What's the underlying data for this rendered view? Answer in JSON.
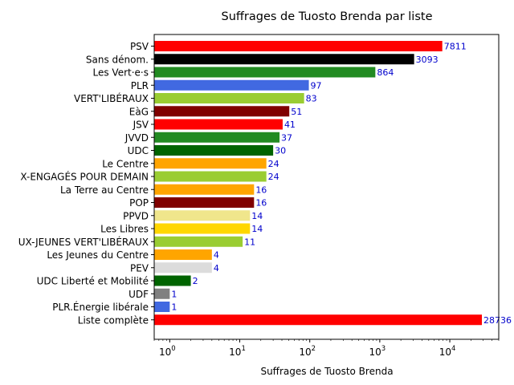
{
  "chart_data": {
    "type": "bar",
    "orientation": "horizontal",
    "title": "Suffrages de Tuosto Brenda par liste",
    "xlabel": "Suffrages de Tuosto Brenda",
    "ylabel": "",
    "xscale": "log",
    "xlim": [
      0.6,
      50000
    ],
    "x_ticks": [
      {
        "value": 1,
        "base": "10",
        "exp": "0"
      },
      {
        "value": 10,
        "base": "10",
        "exp": "1"
      },
      {
        "value": 100,
        "base": "10",
        "exp": "2"
      },
      {
        "value": 1000,
        "base": "10",
        "exp": "3"
      },
      {
        "value": 10000,
        "base": "10",
        "exp": "4"
      }
    ],
    "grid": false,
    "legend": "none",
    "label_color": "#0000cc",
    "bars": [
      {
        "category": "PSV",
        "value": 7811,
        "label": "7811",
        "color": "#ff0000"
      },
      {
        "category": "Sans dénom.",
        "value": 3093,
        "label": "3093",
        "color": "#000000"
      },
      {
        "category": "Les Vert·e·s",
        "value": 864,
        "label": "864",
        "color": "#228b22"
      },
      {
        "category": "PLR",
        "value": 97,
        "label": "97",
        "color": "#4169e1"
      },
      {
        "category": "VERT'LIBÉRAUX",
        "value": 83,
        "label": "83",
        "color": "#9acd32"
      },
      {
        "category": "EàG",
        "value": 51,
        "label": "51",
        "color": "#800000"
      },
      {
        "category": "JSV",
        "value": 41,
        "label": "41",
        "color": "#ff0000"
      },
      {
        "category": "JVVD",
        "value": 37,
        "label": "37",
        "color": "#228b22"
      },
      {
        "category": "UDC",
        "value": 30,
        "label": "30",
        "color": "#006400"
      },
      {
        "category": "Le Centre",
        "value": 24,
        "label": "24",
        "color": "#ffa500"
      },
      {
        "category": "X-ENGAGÉS POUR DEMAIN",
        "value": 24,
        "label": "24",
        "color": "#9acd32"
      },
      {
        "category": "La Terre au Centre",
        "value": 16,
        "label": "16",
        "color": "#ffa500"
      },
      {
        "category": "POP",
        "value": 16,
        "label": "16",
        "color": "#800000"
      },
      {
        "category": "PPVD",
        "value": 14,
        "label": "14",
        "color": "#f0e68c"
      },
      {
        "category": "Les Libres",
        "value": 14,
        "label": "14",
        "color": "#ffd700"
      },
      {
        "category": "UX-JEUNES VERT'LIBÉRAUX",
        "value": 11,
        "label": "11",
        "color": "#9acd32"
      },
      {
        "category": "Les Jeunes du Centre",
        "value": 4,
        "label": "4",
        "color": "#ffa500"
      },
      {
        "category": "PEV",
        "value": 4,
        "label": "4",
        "color": "#dcdcdc"
      },
      {
        "category": "UDC Liberté et Mobilité",
        "value": 2,
        "label": "2",
        "color": "#006400"
      },
      {
        "category": "UDF",
        "value": 1,
        "label": "1",
        "color": "#808080"
      },
      {
        "category": "PLR.Énergie libérale",
        "value": 1,
        "label": "1",
        "color": "#4169e1"
      },
      {
        "category": "Liste complète",
        "value": 28736,
        "label": "28736",
        "color": "#ff0000"
      }
    ]
  }
}
